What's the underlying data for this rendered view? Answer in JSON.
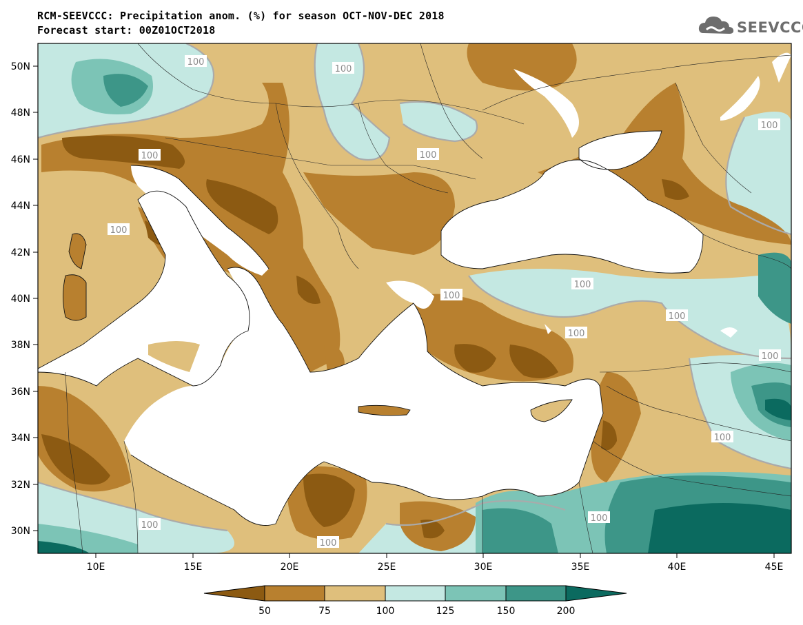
{
  "header": {
    "title_line1": "RCM-SEEVCCC: Precipitation anom. (%) for season OCT-NOV-DEC 2018",
    "title_line2": "Forecast start: 00Z01OCT2018",
    "logo_text": "SEEVCCC"
  },
  "axes": {
    "lat_ticks": [
      "50N",
      "48N",
      "46N",
      "44N",
      "42N",
      "40N",
      "38N",
      "36N",
      "34N",
      "32N",
      "30N"
    ],
    "lon_ticks": [
      "10E",
      "15E",
      "20E",
      "25E",
      "30E",
      "35E",
      "40E",
      "45E"
    ]
  },
  "contour_labels": [
    "100",
    "100",
    "100",
    "100",
    "100",
    "100",
    "100",
    "100",
    "100",
    "100",
    "100",
    "100",
    "100",
    "100",
    "100"
  ],
  "colorbar": {
    "colors": [
      "#8c5a12",
      "#b8802f",
      "#dfbf7c",
      "#c4e8e2",
      "#7cc4b6",
      "#3d9688",
      "#0b6a5f"
    ],
    "labels": [
      "50",
      "75",
      "100",
      "125",
      "150",
      "200"
    ]
  }
}
